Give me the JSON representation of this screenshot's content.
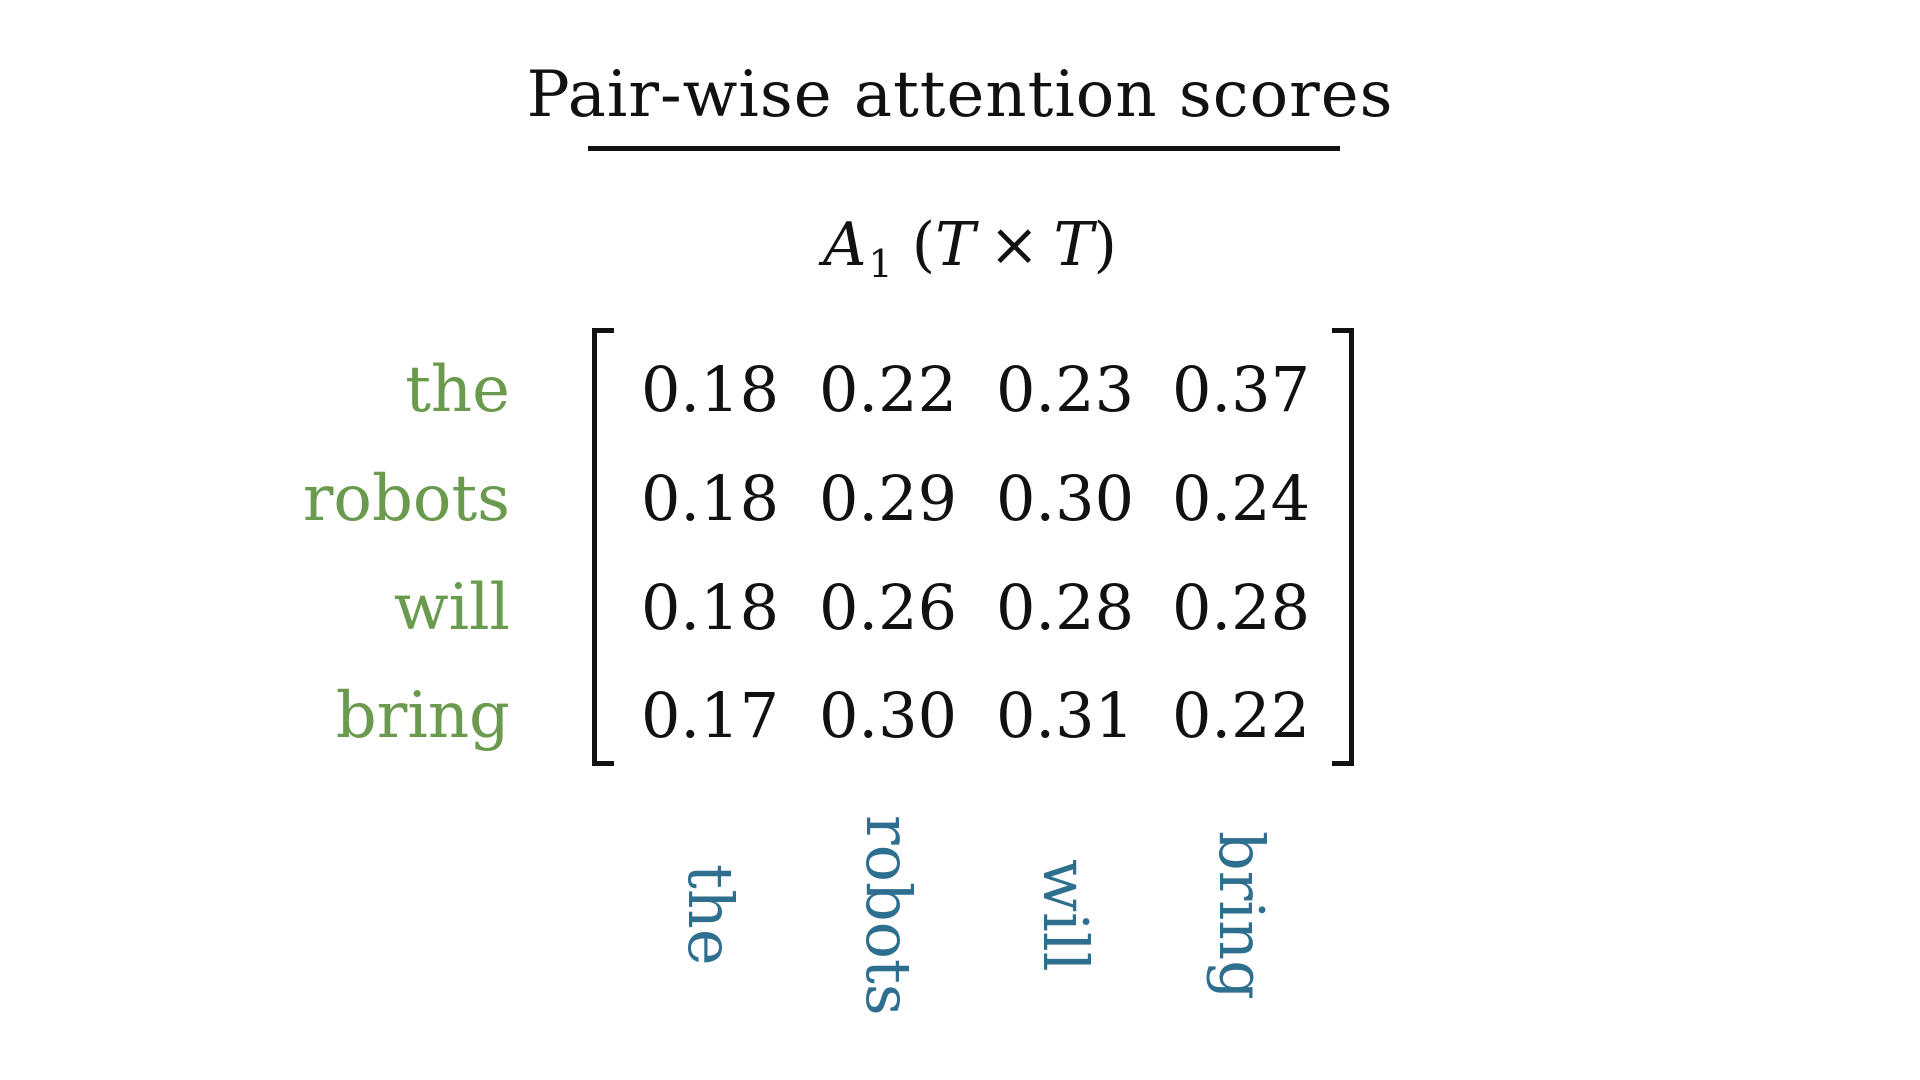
{
  "title": "Pair-wise attention scores",
  "matrix_label": {
    "name": "A",
    "subscript": "1",
    "open_paren": "(",
    "dim_a": "T",
    "times": "×",
    "dim_b": "T",
    "close_paren": ")"
  },
  "row_labels": [
    "the",
    "robots",
    "will",
    "bring"
  ],
  "col_labels": [
    "the",
    "robots",
    "will",
    "bring"
  ],
  "matrix": [
    [
      "0.18",
      "0.22",
      "0.23",
      "0.37"
    ],
    [
      "0.18",
      "0.29",
      "0.30",
      "0.24"
    ],
    [
      "0.18",
      "0.26",
      "0.28",
      "0.28"
    ],
    [
      "0.17",
      "0.30",
      "0.31",
      "0.22"
    ]
  ],
  "colors": {
    "row_label": "#6a9a4e",
    "col_label": "#2e6e8e",
    "text": "#111111"
  }
}
